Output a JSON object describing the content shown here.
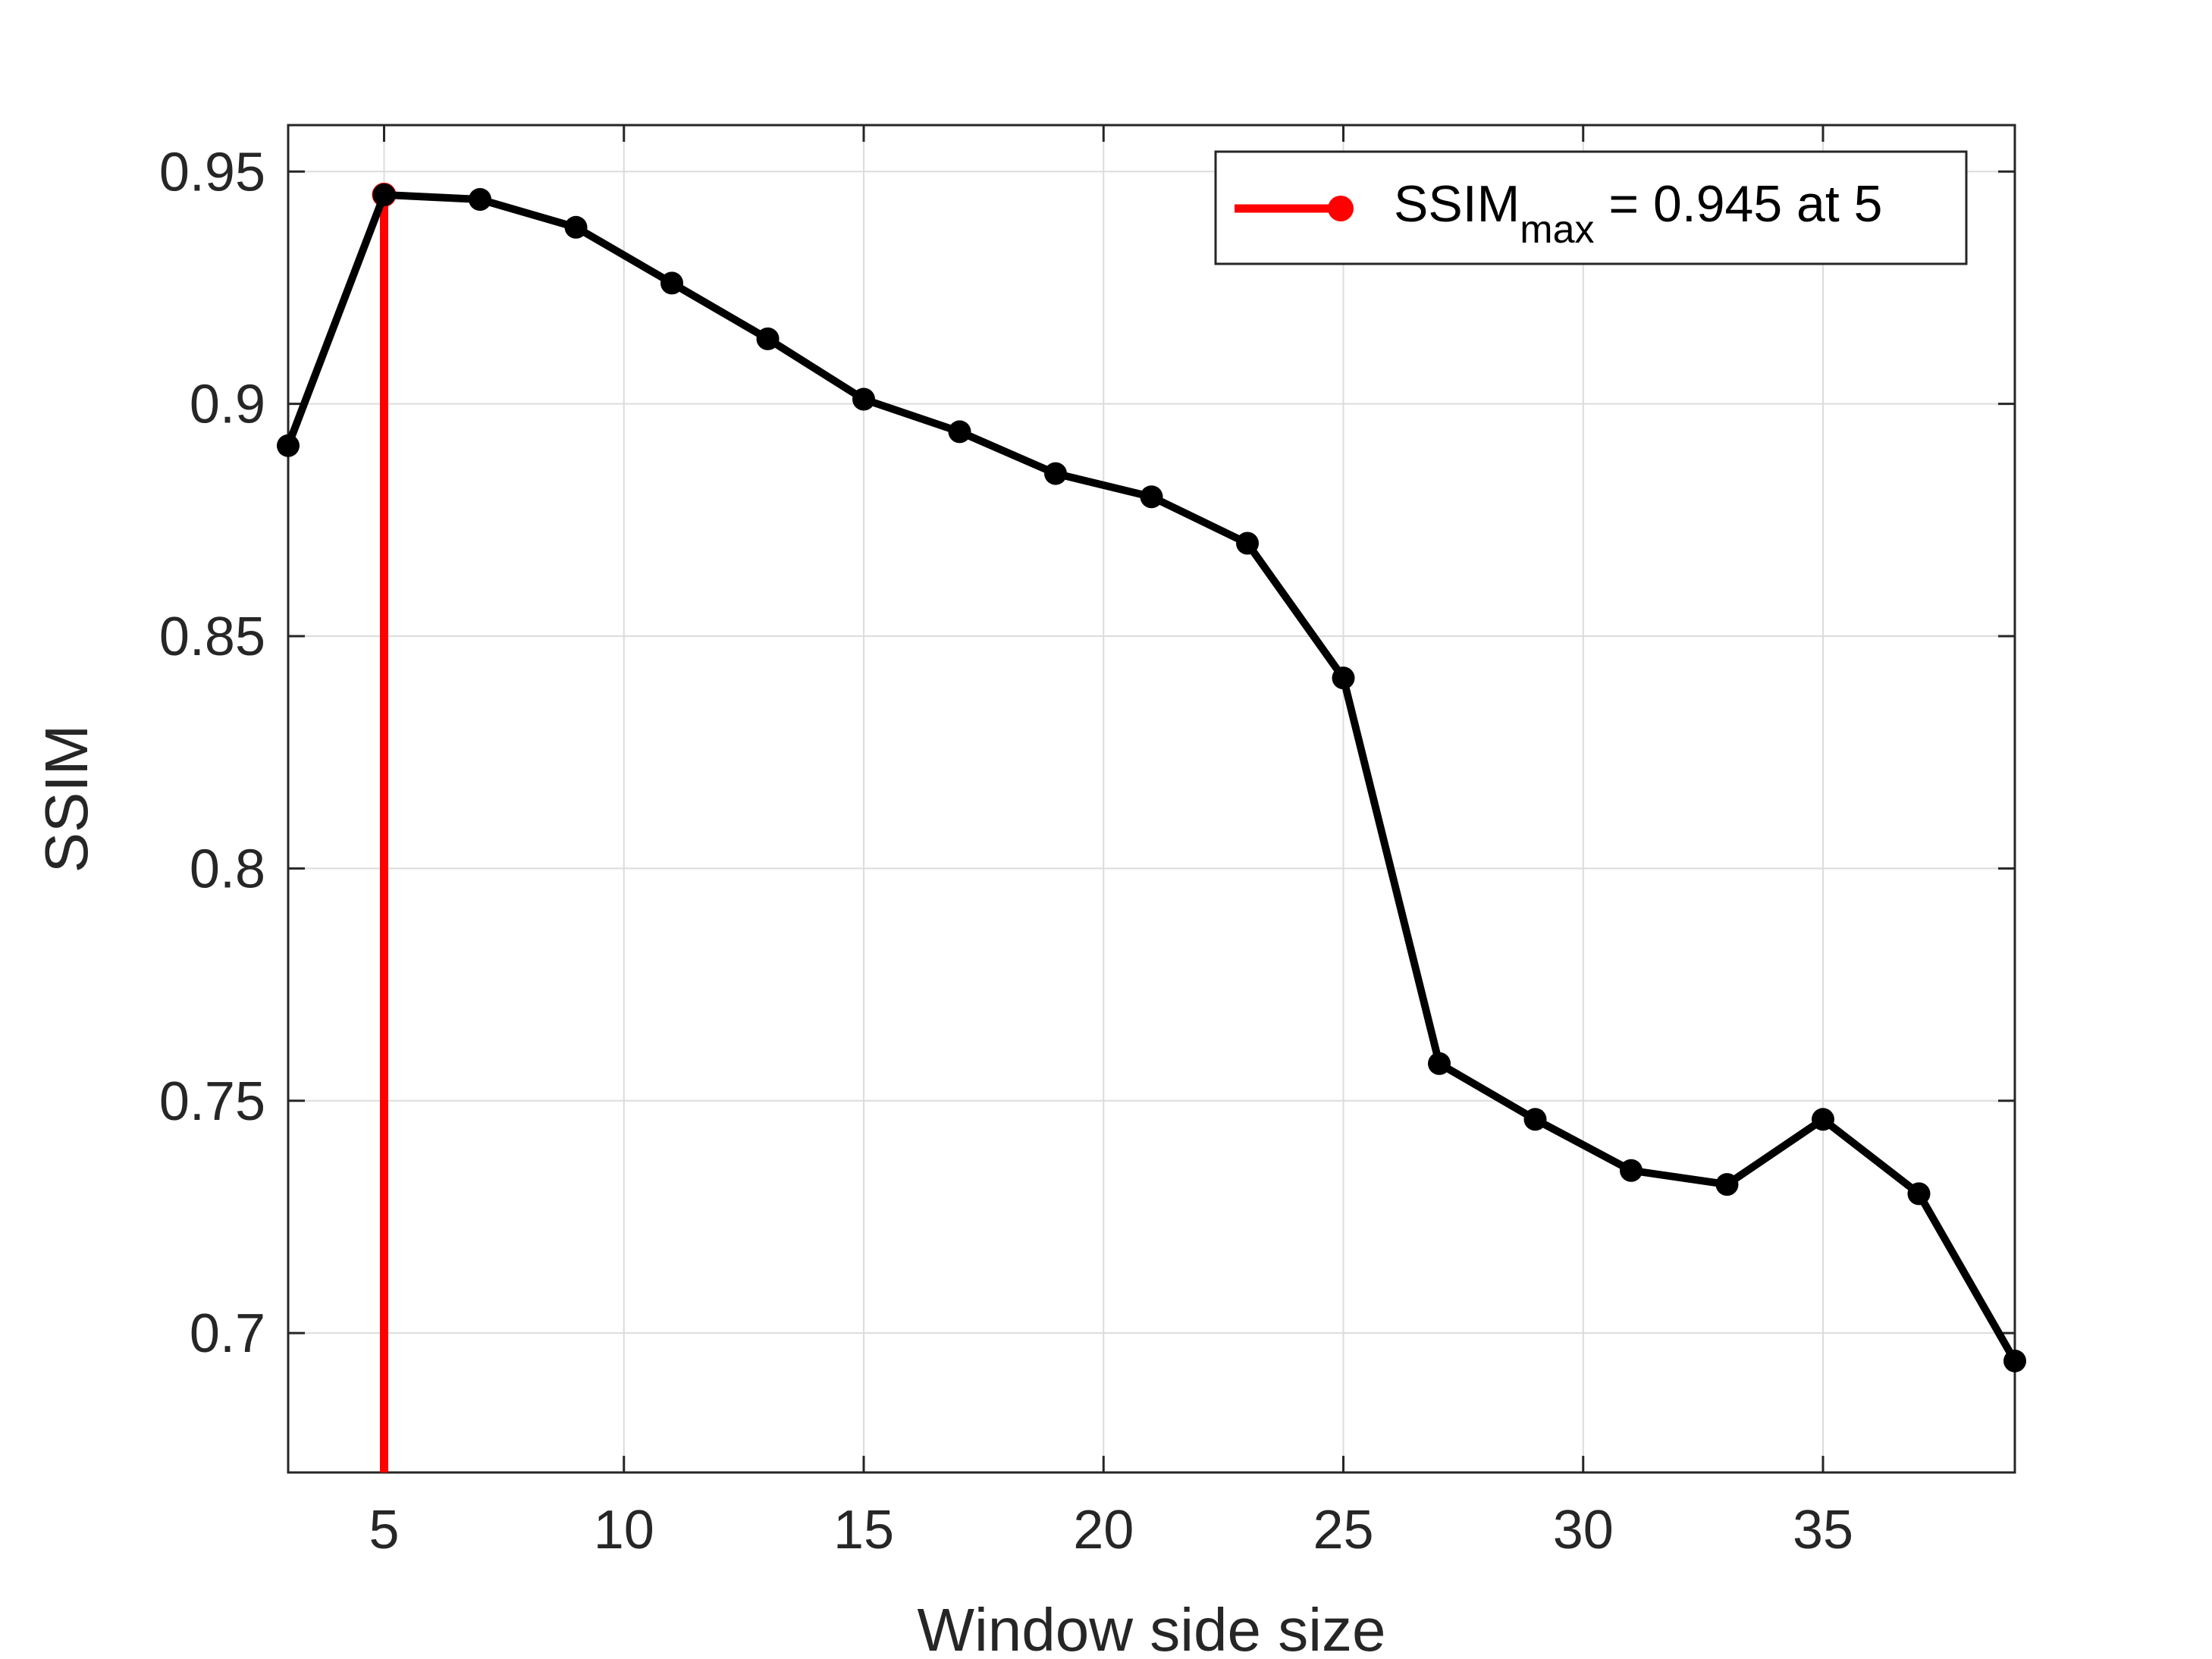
{
  "chart_data": {
    "type": "line",
    "xlabel": "Window side size",
    "ylabel": "SSIM",
    "xlim": [
      3,
      39
    ],
    "ylim": [
      0.67,
      0.96
    ],
    "xticks": [
      5,
      10,
      15,
      20,
      25,
      30,
      35
    ],
    "yticks": [
      0.7,
      0.75,
      0.8,
      0.85,
      0.9,
      0.95
    ],
    "xtick_labels": [
      "5",
      "10",
      "15",
      "20",
      "25",
      "30",
      "35"
    ],
    "ytick_labels": [
      "0.7",
      "0.75",
      "0.8",
      "0.85",
      "0.9",
      "0.95"
    ],
    "grid": true,
    "series": [
      {
        "color": "#000000",
        "x": [
          3,
          5,
          7,
          9,
          11,
          13,
          15,
          17,
          19,
          21,
          23,
          25,
          27,
          29,
          31,
          33,
          35,
          37,
          39
        ],
        "y": [
          0.891,
          0.945,
          0.944,
          0.938,
          0.926,
          0.914,
          0.901,
          0.894,
          0.885,
          0.88,
          0.87,
          0.841,
          0.758,
          0.746,
          0.735,
          0.732,
          0.746,
          0.73,
          0.694
        ]
      }
    ],
    "max_marker": {
      "x": 5,
      "y": 0.945,
      "color": "#ff0000",
      "legend_main": "SSIM",
      "legend_sub": "max",
      "legend_rest": " = 0.945 at 5"
    },
    "legend_position": "top-right"
  }
}
